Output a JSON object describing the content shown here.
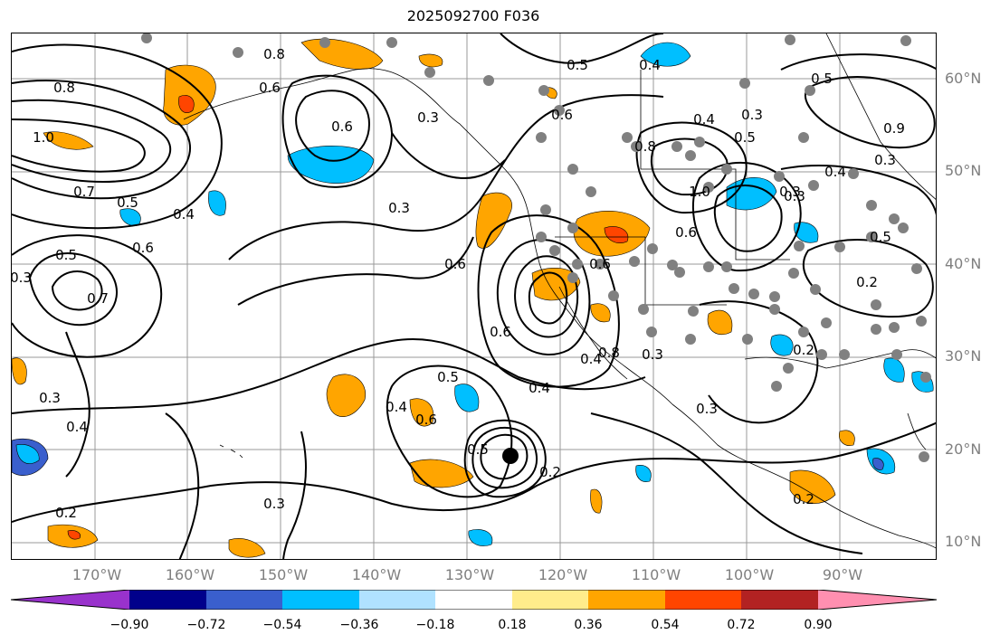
{
  "title": "2025092700 F036",
  "lat_labels": [
    "60°N",
    "50°N",
    "40°N",
    "30°N",
    "20°N",
    "10°N"
  ],
  "lon_labels": [
    "170°W",
    "160°W",
    "150°W",
    "140°W",
    "130°W",
    "120°W",
    "110°W",
    "100°W",
    "90°W"
  ],
  "colorbar": {
    "colors": [
      "#9932cc",
      "#00008b",
      "#3a5fcd",
      "#00bfff",
      "#b0e2ff",
      "#ffffff",
      "#ffec8b",
      "#ffa500",
      "#ff4500",
      "#b22222",
      "#ff8fb0"
    ],
    "ticks": [
      "−0.90",
      "−0.72",
      "−0.54",
      "−0.36",
      "−0.18",
      "0.18",
      "0.36",
      "0.54",
      "0.72",
      "0.90"
    ]
  },
  "contour_labels": [
    "0.8",
    "0.8",
    "0.6",
    "0.5",
    "0.4",
    "0.6",
    "0.6",
    "0.3",
    "0.5",
    "1.0",
    "0.7",
    "0.5",
    "0.4",
    "0.7",
    "0.6",
    "0.5",
    "0.3",
    "0.3",
    "0.6",
    "0.4",
    "0.4",
    "0.3",
    "0.2",
    "0.3",
    "0.5",
    "0.6",
    "0.4",
    "0.5",
    "0.6",
    "0.2",
    "0.6",
    "0.4",
    "0.8",
    "0.3",
    "0.3",
    "0.4",
    "0.3",
    "0.5",
    "0.3",
    "1.0",
    "0.8",
    "0.6",
    "0.4",
    "0.9",
    "0.3",
    "0.5",
    "0.2",
    "0.3",
    "0.2",
    "0.2"
  ]
}
